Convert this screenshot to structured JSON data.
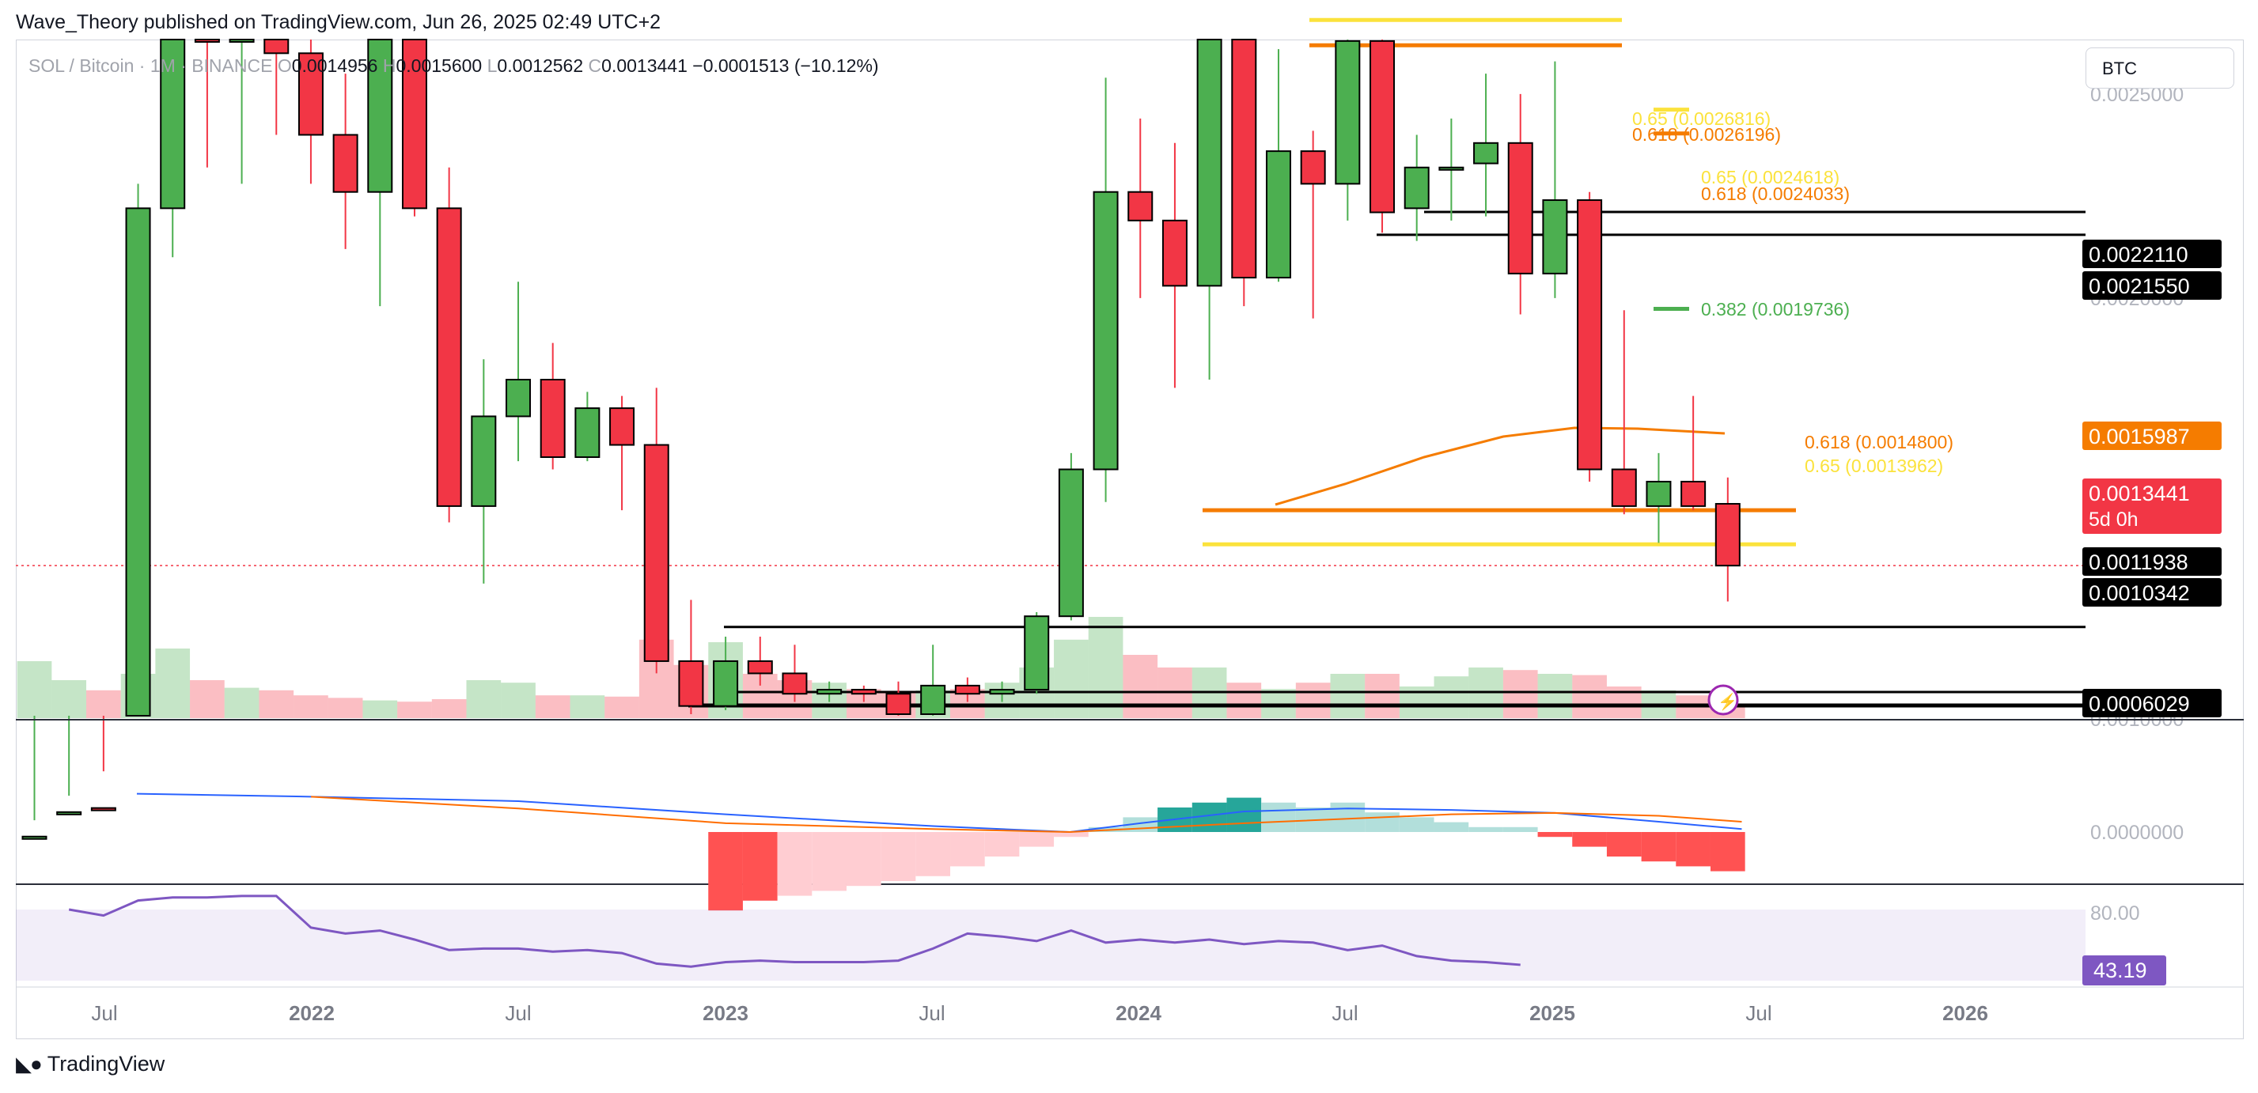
{
  "header": {
    "published_line": "Wave_Theory published on TradingView.com, Jun 26, 2025 02:49 UTC+2"
  },
  "legend": {
    "symbol": "SOL / Bitcoin · 1M · BINANCE",
    "open_prefix": "O",
    "open": "0.0014956",
    "high_prefix": "H",
    "high": "0.0015600",
    "low_prefix": "L",
    "low": "0.0012562",
    "close_prefix": "C",
    "close": "0.0013441",
    "change": "−0.0001513 (−10.12%)"
  },
  "symbol_search": {
    "value": "BTC"
  },
  "footer": {
    "logo_text": "TradingView"
  },
  "colors": {
    "up": "#4caf50",
    "down": "#f23645",
    "orange": "#f57c00",
    "yellow": "#fbe23c",
    "black": "#000000",
    "macd": "#2962ff",
    "signal": "#ff6d00",
    "rsi": "#7e57c2"
  },
  "chart_data": {
    "type": "candlestick",
    "symbol": "SOL / Bitcoin",
    "interval": "1M",
    "exchange": "BINANCE",
    "price_scale": {
      "ticks": [
        "0.0025000",
        "0.0020000",
        "0.0015000",
        "0.0010000"
      ],
      "ylim": [
        0.00098,
        0.00262
      ]
    },
    "x_axis": {
      "labels": [
        "Jul",
        "2022",
        "Jul",
        "2023",
        "Jul",
        "2024",
        "Jul",
        "2025",
        "Jul",
        "2026"
      ]
    },
    "candles": [
      {
        "t": "2021-05",
        "o": 0.00062,
        "h": 0.00072,
        "l": 0.00052,
        "c": 0.00068
      },
      {
        "t": "2021-06",
        "o": 0.00068,
        "h": 0.00078,
        "l": 0.00055,
        "c": 0.00074
      },
      {
        "t": "2021-07",
        "o": 0.00075,
        "h": 0.00084,
        "l": 0.00053,
        "c": 0.0007
      },
      {
        "t": "2021-08",
        "o": 0.0007,
        "h": 0.00228,
        "l": 0.00068,
        "c": 0.00222
      },
      {
        "t": "2021-09",
        "o": 0.00222,
        "h": 0.003,
        "l": 0.0021,
        "c": 0.0029
      },
      {
        "t": "2021-10",
        "o": 0.0029,
        "h": 0.003,
        "l": 0.00232,
        "c": 0.0028
      },
      {
        "t": "2021-11",
        "o": 0.00285,
        "h": 0.003,
        "l": 0.00228,
        "c": 0.00288
      },
      {
        "t": "2021-12",
        "o": 0.00286,
        "h": 0.00298,
        "l": 0.0024,
        "c": 0.0026
      },
      {
        "t": "2022-01",
        "o": 0.0026,
        "h": 0.0027,
        "l": 0.00228,
        "c": 0.0024
      },
      {
        "t": "2022-02",
        "o": 0.0024,
        "h": 0.00255,
        "l": 0.00212,
        "c": 0.00226
      },
      {
        "t": "2022-03",
        "o": 0.00226,
        "h": 0.00272,
        "l": 0.00198,
        "c": 0.00268
      },
      {
        "t": "2022-04",
        "o": 0.00268,
        "h": 0.0029,
        "l": 0.0022,
        "c": 0.00222
      },
      {
        "t": "2022-05",
        "o": 0.00222,
        "h": 0.00232,
        "l": 0.00145,
        "c": 0.00149
      },
      {
        "t": "2022-06",
        "o": 0.00149,
        "h": 0.00185,
        "l": 0.0013,
        "c": 0.00171
      },
      {
        "t": "2022-07",
        "o": 0.00171,
        "h": 0.00204,
        "l": 0.0016,
        "c": 0.0018
      },
      {
        "t": "2022-08",
        "o": 0.0018,
        "h": 0.00189,
        "l": 0.00158,
        "c": 0.00161
      },
      {
        "t": "2022-09",
        "o": 0.00161,
        "h": 0.00177,
        "l": 0.0016,
        "c": 0.00173
      },
      {
        "t": "2022-10",
        "o": 0.00173,
        "h": 0.00176,
        "l": 0.00148,
        "c": 0.00164
      },
      {
        "t": "2022-11",
        "o": 0.00164,
        "h": 0.00178,
        "l": 0.00108,
        "c": 0.00111
      },
      {
        "t": "2022-12",
        "o": 0.00111,
        "h": 0.00126,
        "l": 0.00098,
        "c": 0.001
      },
      {
        "t": "2023-01",
        "o": 0.001,
        "h": 0.00117,
        "l": 0.00099,
        "c": 0.00111
      },
      {
        "t": "2023-02",
        "o": 0.00111,
        "h": 0.00117,
        "l": 0.00105,
        "c": 0.00108
      },
      {
        "t": "2023-03",
        "o": 0.00108,
        "h": 0.00115,
        "l": 0.00101,
        "c": 0.00103
      },
      {
        "t": "2023-04",
        "o": 0.00103,
        "h": 0.00106,
        "l": 0.00101,
        "c": 0.00104
      },
      {
        "t": "2023-05",
        "o": 0.00104,
        "h": 0.00105,
        "l": 0.00101,
        "c": 0.00103
      },
      {
        "t": "2023-06",
        "o": 0.00103,
        "h": 0.00106,
        "l": 0.00096,
        "c": 0.00098
      },
      {
        "t": "2023-07",
        "o": 0.00098,
        "h": 0.00115,
        "l": 0.00096,
        "c": 0.00105
      },
      {
        "t": "2023-08",
        "o": 0.00105,
        "h": 0.00107,
        "l": 0.00101,
        "c": 0.00103
      },
      {
        "t": "2023-09",
        "o": 0.00103,
        "h": 0.00106,
        "l": 0.00101,
        "c": 0.00104
      },
      {
        "t": "2023-10",
        "o": 0.00104,
        "h": 0.00123,
        "l": 0.00103,
        "c": 0.00122
      },
      {
        "t": "2023-11",
        "o": 0.00122,
        "h": 0.00162,
        "l": 0.00121,
        "c": 0.00158
      },
      {
        "t": "2023-12",
        "o": 0.00158,
        "h": 0.00254,
        "l": 0.0015,
        "c": 0.00226
      },
      {
        "t": "2024-01",
        "o": 0.00226,
        "h": 0.00244,
        "l": 0.002,
        "c": 0.00219
      },
      {
        "t": "2024-02",
        "o": 0.00219,
        "h": 0.00238,
        "l": 0.00178,
        "c": 0.00203
      },
      {
        "t": "2024-03",
        "o": 0.00203,
        "h": 0.00275,
        "l": 0.0018,
        "c": 0.00268
      },
      {
        "t": "2024-04",
        "o": 0.00268,
        "h": 0.0027,
        "l": 0.00198,
        "c": 0.00205
      },
      {
        "t": "2024-05",
        "o": 0.00205,
        "h": 0.00261,
        "l": 0.00204,
        "c": 0.00236
      },
      {
        "t": "2024-06",
        "o": 0.00236,
        "h": 0.00241,
        "l": 0.00195,
        "c": 0.00228
      },
      {
        "t": "2024-07",
        "o": 0.00228,
        "h": 0.00265,
        "l": 0.00219,
        "c": 0.00263
      },
      {
        "t": "2024-08",
        "o": 0.00263,
        "h": 0.00268,
        "l": 0.00216,
        "c": 0.00221
      },
      {
        "t": "2024-09",
        "o": 0.00222,
        "h": 0.0024,
        "l": 0.00214,
        "c": 0.00232
      },
      {
        "t": "2024-10",
        "o": 0.00232,
        "h": 0.00244,
        "l": 0.00219,
        "c": 0.00232
      },
      {
        "t": "2024-11",
        "o": 0.00233,
        "h": 0.00255,
        "l": 0.0022,
        "c": 0.00238
      },
      {
        "t": "2024-12",
        "o": 0.00238,
        "h": 0.0025,
        "l": 0.00196,
        "c": 0.00206
      },
      {
        "t": "2025-01",
        "o": 0.00206,
        "h": 0.00258,
        "l": 0.002,
        "c": 0.00224
      },
      {
        "t": "2025-02",
        "o": 0.00224,
        "h": 0.00226,
        "l": 0.00155,
        "c": 0.00158
      },
      {
        "t": "2025-03",
        "o": 0.00158,
        "h": 0.00197,
        "l": 0.00147,
        "c": 0.00149
      },
      {
        "t": "2025-04",
        "o": 0.00149,
        "h": 0.00162,
        "l": 0.0014,
        "c": 0.00155
      },
      {
        "t": "2025-05",
        "o": 0.00155,
        "h": 0.00176,
        "l": 0.00148,
        "c": 0.00149
      },
      {
        "t": "2025-06",
        "o": 0.0014956,
        "h": 0.00156,
        "l": 0.0012562,
        "c": 0.0013441
      }
    ],
    "price_labels": [
      {
        "text": "0.0022110",
        "bg": "#000000",
        "fg": "#ffffff"
      },
      {
        "text": "0.0021550",
        "bg": "#000000",
        "fg": "#ffffff"
      },
      {
        "text": "0.0015987",
        "bg": "#f57c00",
        "fg": "#ffffff"
      },
      {
        "text": "0.0013441",
        "sub": "5d 0h",
        "bg": "#f23645",
        "fg": "#ffffff"
      },
      {
        "text": "0.0011938",
        "bg": "#000000",
        "fg": "#ffffff"
      },
      {
        "text": "0.0010342",
        "bg": "#000000",
        "fg": "#ffffff"
      },
      {
        "text": "0.0006029",
        "bg": "#000000",
        "fg": "#ffffff"
      }
    ],
    "fib_labels": [
      {
        "text": "0.618 (0.0026196)",
        "color": "#f57c00"
      },
      {
        "text": "0.65 (0.0026816)",
        "color": "#fbe23c"
      },
      {
        "text": "0.65 (0.0024618)",
        "color": "#fbe23c"
      },
      {
        "text": "0.618 (0.0024033)",
        "color": "#f57c00"
      },
      {
        "text": "0.382 (0.0019736)",
        "color": "#4caf50"
      },
      {
        "text": "0.618 (0.0014800)",
        "color": "#f57c00"
      },
      {
        "text": "0.65 (0.0013962)",
        "color": "#fbe23c"
      }
    ],
    "volume": [
      0.45,
      0.3,
      0.22,
      0.35,
      0.55,
      0.3,
      0.24,
      0.22,
      0.18,
      0.16,
      0.14,
      0.13,
      0.15,
      0.3,
      0.28,
      0.18,
      0.18,
      0.17,
      0.62,
      0.42,
      0.6,
      0.35,
      0.3,
      0.28,
      0.23,
      0.2,
      0.22,
      0.23,
      0.28,
      0.4,
      0.62,
      0.8,
      0.5,
      0.4,
      0.4,
      0.28,
      0.23,
      0.28,
      0.35,
      0.35,
      0.25,
      0.33,
      0.4,
      0.38,
      0.35,
      0.34,
      0.25,
      0.22,
      0.18,
      0.1
    ],
    "macd": {
      "zero_tick": "0.0000000",
      "macd_line": [
        [
          2021.58,
          0.0026
        ],
        [
          2022.0,
          0.0024
        ],
        [
          2022.5,
          0.0021
        ],
        [
          2023.0,
          0.0012
        ],
        [
          2023.5,
          0.0004
        ],
        [
          2023.83,
          0.0
        ],
        [
          2024.0,
          0.0006
        ],
        [
          2024.25,
          0.0014
        ],
        [
          2024.5,
          0.0016
        ],
        [
          2024.75,
          0.0015
        ],
        [
          2025.0,
          0.0013
        ],
        [
          2025.25,
          0.0007
        ],
        [
          2025.45,
          0.0002
        ]
      ],
      "signal_line": [
        [
          2022.0,
          0.0024
        ],
        [
          2022.5,
          0.0016
        ],
        [
          2023.0,
          0.0006
        ],
        [
          2023.5,
          0.0002
        ],
        [
          2023.83,
          0.0
        ],
        [
          2024.25,
          0.0006
        ],
        [
          2024.75,
          0.0012
        ],
        [
          2025.0,
          0.0013
        ],
        [
          2025.25,
          0.0011
        ],
        [
          2025.45,
          0.0007
        ]
      ],
      "histogram": [
        -0.0016,
        -0.0014,
        -0.0013,
        -0.0012,
        -0.0011,
        -0.001,
        -0.0009,
        -0.0007,
        -0.0005,
        -0.0003,
        -0.0001,
        0.0001,
        0.0003,
        0.0005,
        0.0006,
        0.0007,
        0.0006,
        0.0005,
        0.0006,
        0.0004,
        0.0003,
        0.0002,
        0.0001,
        0.0001,
        -0.0001,
        -0.0003,
        -0.0005,
        -0.0006,
        -0.0007,
        -0.0008
      ]
    },
    "rsi": {
      "value": "43.19",
      "ticks": [
        "80.00"
      ],
      "values": [
        80,
        76,
        86,
        88,
        88,
        89,
        89,
        68,
        64,
        66,
        60,
        53,
        54,
        54,
        52,
        53,
        51,
        44,
        42,
        45,
        46,
        45,
        45,
        45,
        46,
        54,
        64,
        62,
        59,
        66,
        58,
        60,
        58,
        60,
        57,
        59,
        58,
        53,
        56,
        49,
        46,
        45,
        43.19
      ]
    }
  }
}
